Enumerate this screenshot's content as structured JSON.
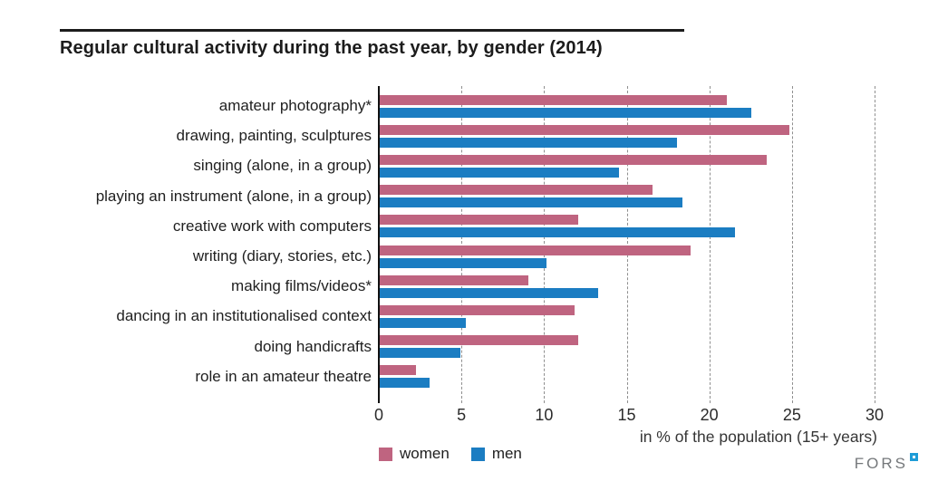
{
  "title": "Regular cultural activity during the past year, by gender (2014)",
  "chart_data": {
    "type": "bar",
    "orientation": "horizontal",
    "title": "Regular cultural activity during the past year, by gender (2014)",
    "categories": [
      "amateur photography*",
      "drawing, painting, sculptures",
      "singing (alone, in a group)",
      "playing an instrument (alone, in a group)",
      "creative work with computers",
      "writing (diary, stories, etc.)",
      "making films/videos*",
      "dancing in an institutionalised context",
      "doing handicrafts",
      "role in an amateur theatre"
    ],
    "series": [
      {
        "name": "women",
        "color": "#bf6480",
        "values": [
          21.0,
          24.8,
          23.4,
          16.5,
          12.0,
          18.8,
          9.0,
          11.8,
          12.0,
          2.2
        ]
      },
      {
        "name": "men",
        "color": "#1b7dc2",
        "values": [
          22.5,
          18.0,
          14.5,
          18.3,
          21.5,
          10.1,
          13.2,
          5.2,
          4.9,
          3.0
        ]
      }
    ],
    "xlabel": "in % of the population (15+ years)",
    "xlim": [
      0,
      30
    ],
    "xticks": [
      0,
      5,
      10,
      15,
      20,
      25,
      30
    ],
    "grid": "dashed-vertical",
    "legend_position": "bottom-left"
  },
  "footer": {
    "logo_text": "FORS"
  }
}
